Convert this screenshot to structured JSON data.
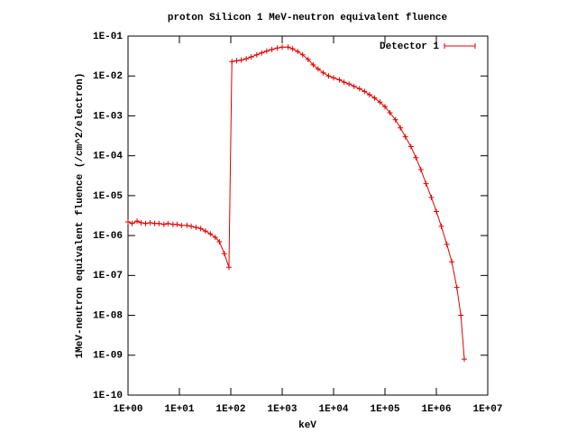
{
  "chart_data": {
    "type": "line",
    "title": "proton Silicon 1 MeV-neutron equivalent fluence",
    "x_label": "keV",
    "y_label": "1MeV-neutron equivalent fluence (/cm^2/electron)",
    "xlog": true,
    "ylog": true,
    "xlim": [
      1,
      10000000
    ],
    "ylim": [
      1e-10,
      0.1
    ],
    "xticks": [
      {
        "value": 1,
        "label": "1E+00"
      },
      {
        "value": 10,
        "label": "1E+01"
      },
      {
        "value": 100,
        "label": "1E+02"
      },
      {
        "value": 1000,
        "label": "1E+03"
      },
      {
        "value": 10000,
        "label": "1E+04"
      },
      {
        "value": 100000,
        "label": "1E+05"
      },
      {
        "value": 1000000,
        "label": "1E+06"
      },
      {
        "value": 10000000,
        "label": "1E+07"
      }
    ],
    "yticks": [
      {
        "value": 1e-10,
        "label": "1E-10"
      },
      {
        "value": 1e-09,
        "label": "1E-09"
      },
      {
        "value": 1e-08,
        "label": "1E-08"
      },
      {
        "value": 1e-07,
        "label": "1E-07"
      },
      {
        "value": 1e-06,
        "label": "1E-06"
      },
      {
        "value": 1e-05,
        "label": "1E-05"
      },
      {
        "value": 0.0001,
        "label": "1E-04"
      },
      {
        "value": 0.001,
        "label": "1E-03"
      },
      {
        "value": 0.01,
        "label": "1E-02"
      },
      {
        "value": 0.1,
        "label": "1E-01"
      }
    ],
    "legend": "top-right",
    "series": [
      {
        "name": "Detector 1",
        "color": "#e00000",
        "x": [
          1,
          1.2,
          1.5,
          1.8,
          2.2,
          2.7,
          3.3,
          4,
          5,
          6,
          7.5,
          9,
          11,
          14,
          17,
          21,
          26,
          32,
          40,
          50,
          60,
          75,
          92,
          105,
          130,
          160,
          200,
          250,
          320,
          400,
          500,
          630,
          800,
          1000,
          1300,
          1600,
          2000,
          2500,
          3200,
          4000,
          5000,
          6300,
          8000,
          10000,
          13000,
          16000,
          20000,
          25000,
          32000,
          40000,
          50000,
          63000,
          80000,
          100000,
          125000,
          160000,
          200000,
          250000,
          320000,
          400000,
          500000,
          630000,
          800000,
          1000000,
          1250000,
          1600000,
          2000000,
          2500000,
          3000000,
          3500000
        ],
        "values": [
          2.2e-06,
          2e-06,
          2.3e-06,
          2.1e-06,
          2e-06,
          2.1e-06,
          2e-06,
          2e-06,
          1.9e-06,
          2e-06,
          1.9e-06,
          1.9e-06,
          1.8e-06,
          1.8e-06,
          1.7e-06,
          1.6e-06,
          1.5e-06,
          1.3e-06,
          1.1e-06,
          9e-07,
          7e-07,
          3.5e-07,
          1.6e-07,
          0.023,
          0.024,
          0.025,
          0.027,
          0.03,
          0.034,
          0.038,
          0.042,
          0.046,
          0.05,
          0.053,
          0.053,
          0.048,
          0.041,
          0.034,
          0.026,
          0.019,
          0.015,
          0.012,
          0.01,
          0.009,
          0.008,
          0.007,
          0.0063,
          0.0055,
          0.0048,
          0.0041,
          0.0034,
          0.0028,
          0.0022,
          0.0017,
          0.0012,
          0.0008,
          0.0005,
          0.0003,
          0.00017,
          9e-05,
          4.5e-05,
          2e-05,
          9e-06,
          4e-06,
          1.7e-06,
          6e-07,
          2.2e-07,
          5e-08,
          1e-08,
          8e-10
        ]
      }
    ]
  }
}
